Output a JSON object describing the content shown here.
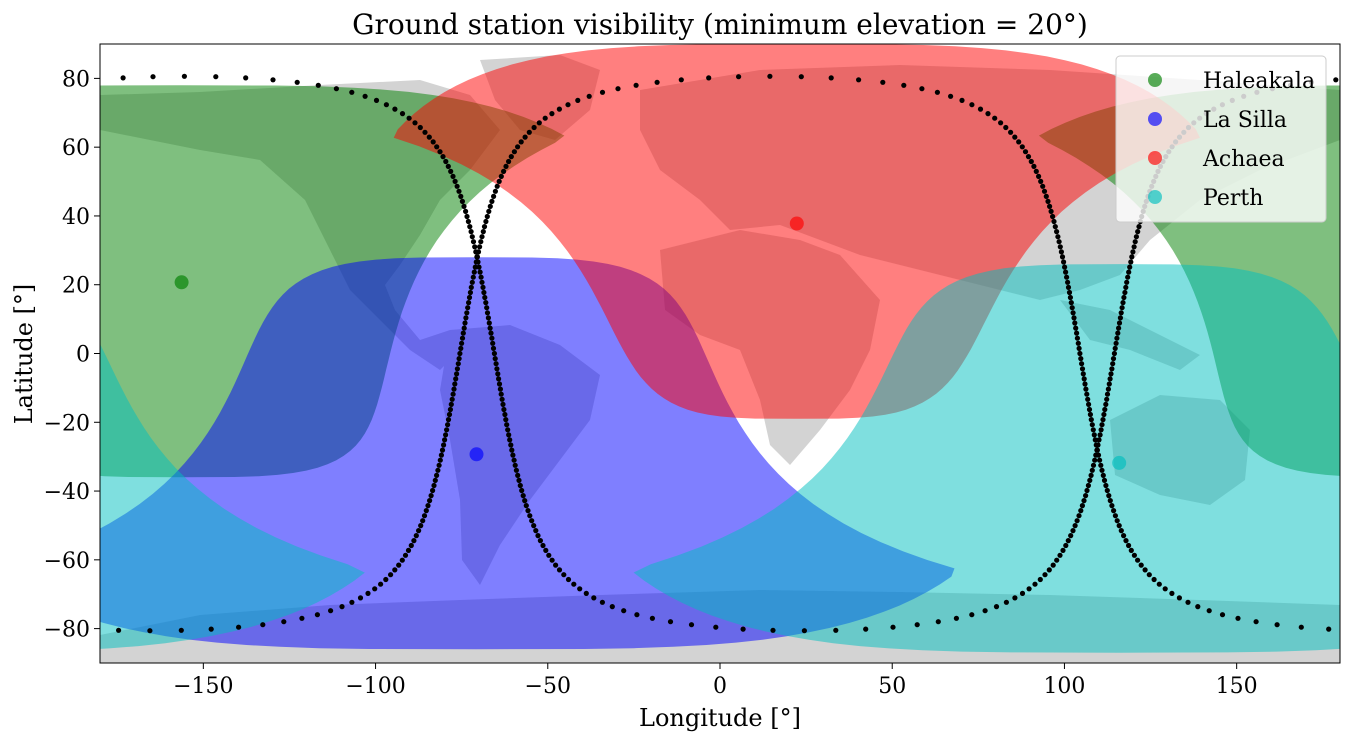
{
  "chart_data": {
    "type": "scatter",
    "title": "Ground station visibility (minimum elevation = 20°)",
    "xlabel": "Longitude [°]",
    "ylabel": "Latitude [°]",
    "xlim": [
      -180,
      180
    ],
    "ylim": [
      -90,
      90
    ],
    "xticks": [
      -150,
      -100,
      -50,
      0,
      50,
      100,
      150
    ],
    "yticks": [
      -80,
      -60,
      -40,
      -20,
      0,
      20,
      40,
      60,
      80
    ],
    "xtick_labels": [
      "−150",
      "−100",
      "−50",
      "0",
      "50",
      "100",
      "150"
    ],
    "ytick_labels": [
      "−80",
      "−60",
      "−40",
      "−20",
      "0",
      "20",
      "40",
      "60",
      "80"
    ],
    "legend_position": "top-right",
    "grid": false,
    "stations": [
      {
        "name": "Haleakala",
        "lon": -156.3,
        "lat": 20.7,
        "color": "#008000",
        "region": {
          "lat_min": -36,
          "lat_max": 78,
          "lon_half_width_equator": 63,
          "wraps": true
        }
      },
      {
        "name": "La Silla",
        "lon": -70.7,
        "lat": -29.3,
        "color": "#0000ff",
        "region": {
          "lat_min": -86,
          "lat_max": 28,
          "lon_half_width_equator": 72,
          "wraps": false
        }
      },
      {
        "name": "Achaea",
        "lon": 22.3,
        "lat": 37.8,
        "color": "#ff0000",
        "region": {
          "lat_min": -19,
          "lat_max": 90,
          "lon_half_width_equator": 58,
          "wraps": false
        }
      },
      {
        "name": "Perth",
        "lon": 115.9,
        "lat": -31.8,
        "color": "#00bfbf",
        "region": {
          "lat_min": -87,
          "lat_max": 26,
          "lon_half_width_equator": 72,
          "wraps": true
        }
      }
    ],
    "ground_track": {
      "color": "#000000",
      "inclination_deg": 80.6,
      "ascending_node_lon": [
        -75.5,
        114.5
      ],
      "sample_step_deg": 1.5
    },
    "basemap_land_color": "#d3d3d3"
  }
}
